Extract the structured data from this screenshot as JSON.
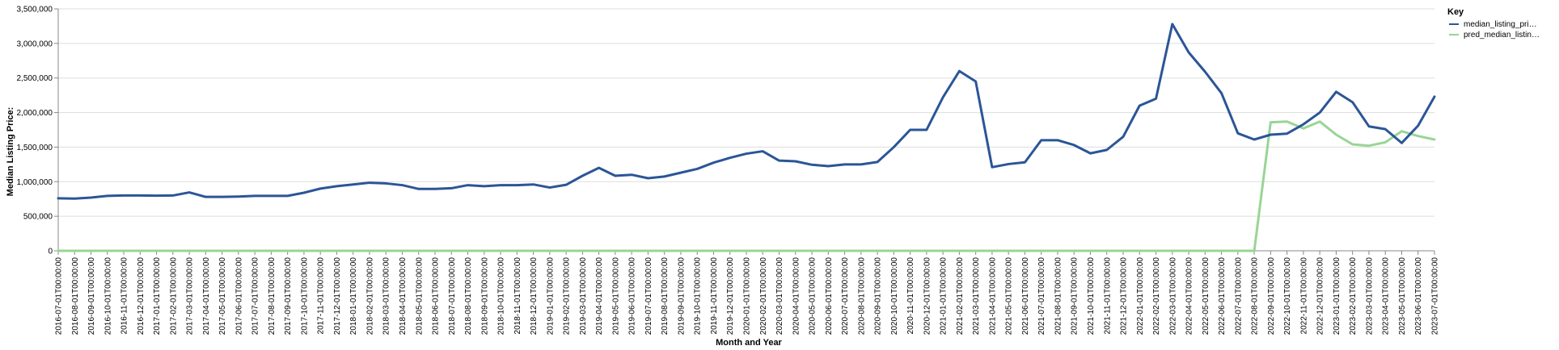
{
  "chart_data": {
    "type": "line",
    "xlabel": "Month and Year",
    "ylabel": "Median Listing Price:",
    "ylim": [
      0,
      3500000
    ],
    "yticks": [
      "0",
      "500,000",
      "1,000,000",
      "1,500,000",
      "2,000,000",
      "2,500,000",
      "3,000,000",
      "3,500,000"
    ],
    "grid": "horizontal",
    "legend": {
      "title": "Key",
      "position": "top-right"
    },
    "x": [
      "2016-07-01T00:00:00",
      "2016-08-01T00:00:00",
      "2016-09-01T00:00:00",
      "2016-10-01T00:00:00",
      "2016-11-01T00:00:00",
      "2016-12-01T00:00:00",
      "2017-01-01T00:00:00",
      "2017-02-01T00:00:00",
      "2017-03-01T00:00:00",
      "2017-04-01T00:00:00",
      "2017-05-01T00:00:00",
      "2017-06-01T00:00:00",
      "2017-07-01T00:00:00",
      "2017-08-01T00:00:00",
      "2017-09-01T00:00:00",
      "2017-10-01T00:00:00",
      "2017-11-01T00:00:00",
      "2017-12-01T00:00:00",
      "2018-01-01T00:00:00",
      "2018-02-01T00:00:00",
      "2018-03-01T00:00:00",
      "2018-04-01T00:00:00",
      "2018-05-01T00:00:00",
      "2018-06-01T00:00:00",
      "2018-07-01T00:00:00",
      "2018-08-01T00:00:00",
      "2018-09-01T00:00:00",
      "2018-10-01T00:00:00",
      "2018-11-01T00:00:00",
      "2018-12-01T00:00:00",
      "2019-01-01T00:00:00",
      "2019-02-01T00:00:00",
      "2019-03-01T00:00:00",
      "2019-04-01T00:00:00",
      "2019-05-01T00:00:00",
      "2019-06-01T00:00:00",
      "2019-07-01T00:00:00",
      "2019-08-01T00:00:00",
      "2019-09-01T00:00:00",
      "2019-10-01T00:00:00",
      "2019-11-01T00:00:00",
      "2019-12-01T00:00:00",
      "2020-01-01T00:00:00",
      "2020-02-01T00:00:00",
      "2020-03-01T00:00:00",
      "2020-04-01T00:00:00",
      "2020-05-01T00:00:00",
      "2020-06-01T00:00:00",
      "2020-07-01T00:00:00",
      "2020-08-01T00:00:00",
      "2020-09-01T00:00:00",
      "2020-10-01T00:00:00",
      "2020-11-01T00:00:00",
      "2020-12-01T00:00:00",
      "2021-01-01T00:00:00",
      "2021-02-01T00:00:00",
      "2021-03-01T00:00:00",
      "2021-04-01T00:00:00",
      "2021-05-01T00:00:00",
      "2021-06-01T00:00:00",
      "2021-07-01T00:00:00",
      "2021-08-01T00:00:00",
      "2021-09-01T00:00:00",
      "2021-10-01T00:00:00",
      "2021-11-01T00:00:00",
      "2021-12-01T00:00:00",
      "2022-01-01T00:00:00",
      "2022-02-01T00:00:00",
      "2022-03-01T00:00:00",
      "2022-04-01T00:00:00",
      "2022-05-01T00:00:00",
      "2022-06-01T00:00:00",
      "2022-07-01T00:00:00",
      "2022-08-01T00:00:00",
      "2022-09-01T00:00:00",
      "2022-10-01T00:00:00",
      "2022-11-01T00:00:00",
      "2022-12-01T00:00:00",
      "2023-01-01T00:00:00",
      "2023-02-01T00:00:00",
      "2023-03-01T00:00:00",
      "2023-04-01T00:00:00",
      "2023-05-01T00:00:00",
      "2023-06-01T00:00:00",
      "2023-07-01T00:00:00"
    ],
    "series": [
      {
        "name": "median_listing_pri…",
        "color": "#2b5597",
        "values": [
          760000,
          755000,
          770000,
          795000,
          800000,
          800000,
          798000,
          800000,
          845000,
          780000,
          780000,
          785000,
          795000,
          795000,
          795000,
          840000,
          900000,
          935000,
          960000,
          985000,
          975000,
          950000,
          895000,
          895000,
          905000,
          950000,
          935000,
          950000,
          950000,
          960000,
          915000,
          955000,
          1085000,
          1200000,
          1085000,
          1100000,
          1050000,
          1075000,
          1130000,
          1185000,
          1275000,
          1345000,
          1405000,
          1440000,
          1305000,
          1295000,
          1245000,
          1225000,
          1250000,
          1250000,
          1285000,
          1500000,
          1750000,
          1750000,
          2220000,
          2600000,
          2450000,
          1210000,
          1255000,
          1280000,
          1600000,
          1600000,
          1530000,
          1410000,
          1460000,
          1650000,
          2100000,
          2200000,
          3280000,
          2870000,
          2590000,
          2280000,
          1700000,
          1610000,
          1680000,
          1695000,
          1830000,
          2000000,
          2300000,
          2150000,
          1800000,
          1760000,
          1560000,
          1810000,
          2230000
        ]
      },
      {
        "name": "pred_median_listin…",
        "color": "#98d594",
        "values": [
          0,
          0,
          0,
          0,
          0,
          0,
          0,
          0,
          0,
          0,
          0,
          0,
          0,
          0,
          0,
          0,
          0,
          0,
          0,
          0,
          0,
          0,
          0,
          0,
          0,
          0,
          0,
          0,
          0,
          0,
          0,
          0,
          0,
          0,
          0,
          0,
          0,
          0,
          0,
          0,
          0,
          0,
          0,
          0,
          0,
          0,
          0,
          0,
          0,
          0,
          0,
          0,
          0,
          0,
          0,
          0,
          0,
          0,
          0,
          0,
          0,
          0,
          0,
          0,
          0,
          0,
          0,
          0,
          0,
          0,
          0,
          0,
          0,
          0,
          1860000,
          1870000,
          1770000,
          1870000,
          1680000,
          1540000,
          1520000,
          1570000,
          1730000,
          1660000,
          1610000
        ]
      }
    ]
  }
}
